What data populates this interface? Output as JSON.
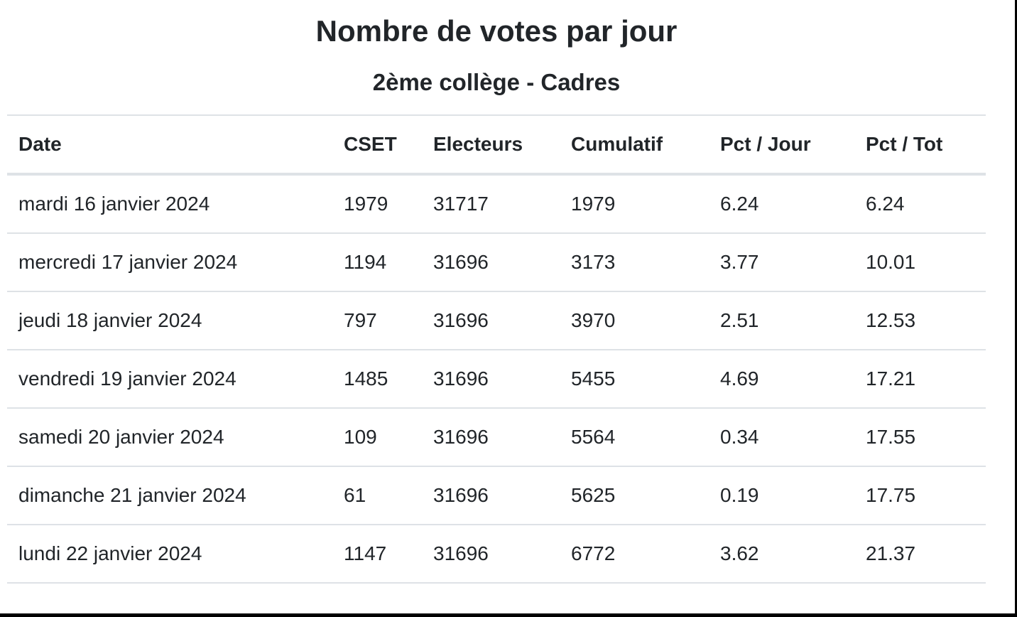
{
  "header": {
    "title": "Nombre de votes par jour",
    "subtitle": "2ème collège - Cadres"
  },
  "chart_data": {
    "type": "table",
    "title": "Nombre de votes par jour",
    "subtitle": "2ème collège - Cadres",
    "columns": [
      "Date",
      "CSET",
      "Electeurs",
      "Cumulatif",
      "Pct / Jour",
      "Pct / Tot"
    ],
    "rows": [
      [
        "mardi 16 janvier 2024",
        "1979",
        "31717",
        "1979",
        "6.24",
        "6.24"
      ],
      [
        "mercredi 17 janvier 2024",
        "1194",
        "31696",
        "3173",
        "3.77",
        "10.01"
      ],
      [
        "jeudi 18 janvier 2024",
        "797",
        "31696",
        "3970",
        "2.51",
        "12.53"
      ],
      [
        "vendredi 19 janvier 2024",
        "1485",
        "31696",
        "5455",
        "4.69",
        "17.21"
      ],
      [
        "samedi 20 janvier 2024",
        "109",
        "31696",
        "5564",
        "0.34",
        "17.55"
      ],
      [
        "dimanche 21 janvier 2024",
        "61",
        "31696",
        "5625",
        "0.19",
        "17.75"
      ],
      [
        "lundi 22 janvier 2024",
        "1147",
        "31696",
        "6772",
        "3.62",
        "21.37"
      ]
    ]
  },
  "colors": {
    "text": "#212529",
    "row_border": "#dee2e6",
    "page_background": "#ffffff",
    "frame": "#000000"
  }
}
